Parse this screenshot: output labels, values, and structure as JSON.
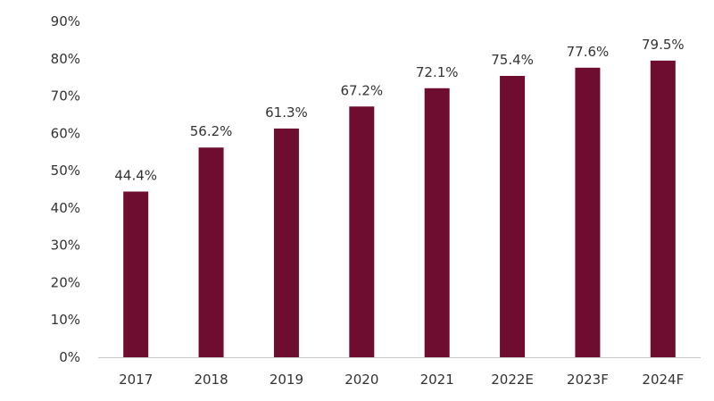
{
  "chart_data": {
    "type": "bar",
    "categories": [
      "2017",
      "2018",
      "2019",
      "2020",
      "2021",
      "2022E",
      "2023F",
      "2024F"
    ],
    "values": [
      44.4,
      56.2,
      61.3,
      67.2,
      72.1,
      75.4,
      77.6,
      79.5
    ],
    "data_labels": [
      "44.4%",
      "56.2%",
      "61.3%",
      "67.2%",
      "72.1%",
      "75.4%",
      "77.6%",
      "79.5%"
    ],
    "y_ticks": [
      0,
      10,
      20,
      30,
      40,
      50,
      60,
      70,
      80,
      90
    ],
    "y_tick_labels": [
      "0%",
      "10%",
      "20%",
      "30%",
      "40%",
      "50%",
      "60%",
      "70%",
      "80%",
      "90%"
    ],
    "ylim": [
      0,
      90
    ],
    "grid": false,
    "legend": false,
    "bar_color": "#6e0d2f",
    "axis_color": "#c8c8c8",
    "text_color": "#333333"
  }
}
